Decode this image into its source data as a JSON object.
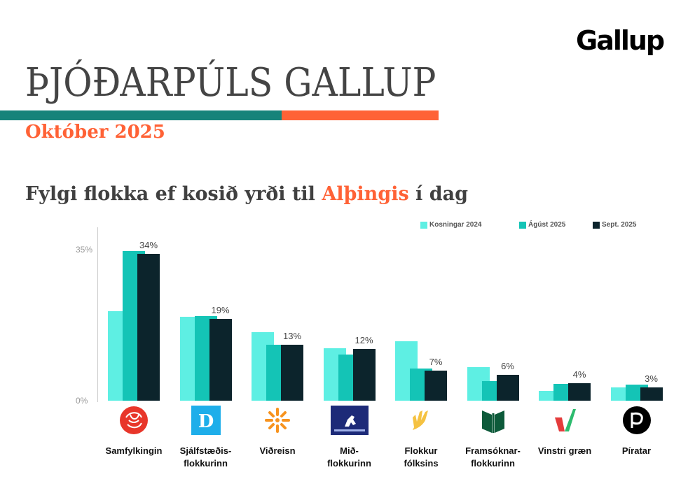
{
  "brand": {
    "logo_text": "Gallup"
  },
  "header": {
    "title": "ÞJÓÐARPÚLS GALLUP",
    "subtitle": "Október 2025",
    "colors": {
      "teal": "#17837a",
      "orange": "#ff6236"
    }
  },
  "section": {
    "heading_before": "Fylgi flokka ef kosið yrði til ",
    "heading_highlight": "Alþingis",
    "heading_after": " í dag"
  },
  "legend": [
    {
      "label": "Kosningar 2024",
      "color": "#5eefe3"
    },
    {
      "label": "Ágúst 2025",
      "color": "#14c4b6"
    },
    {
      "label": "Sept. 2025",
      "color": "#0c242c"
    }
  ],
  "axis": {
    "ticks": [
      "35%",
      "0%"
    ]
  },
  "parties": [
    {
      "name_line1": "Samfylkingin",
      "name_line2": "",
      "label": "34%",
      "logo": "red-rose-icon"
    },
    {
      "name_line1": "Sjálfstæðis-",
      "name_line2": "flokkurinn",
      "label": "19%",
      "logo": "d-letter-icon"
    },
    {
      "name_line1": "Viðreisn",
      "name_line2": "",
      "label": "13%",
      "logo": "orange-star-icon"
    },
    {
      "name_line1": "Mið-",
      "name_line2": "flokkurinn",
      "label": "12%",
      "logo": "horse-icon"
    },
    {
      "name_line1": "Flokkur",
      "name_line2": "fólksins",
      "label": "7%",
      "logo": "yellow-hand-icon"
    },
    {
      "name_line1": "Framsóknar-",
      "name_line2": "flokkurinn",
      "label": "6%",
      "logo": "green-book-icon"
    },
    {
      "name_line1": "Vinstri græn",
      "name_line2": "",
      "label": "4%",
      "logo": "v-check-icon"
    },
    {
      "name_line1": "Píratar",
      "name_line2": "",
      "label": "3%",
      "logo": "pirate-flag-icon"
    }
  ],
  "chart_data": {
    "type": "bar",
    "title": "Fylgi flokka ef kosið yrði til Alþingis í dag",
    "xlabel": "",
    "ylabel": "",
    "ylim": [
      0,
      35
    ],
    "yticks": [
      "0%",
      "35%"
    ],
    "grid": false,
    "legend_position": "top-right",
    "categories": [
      "Samfylkingin",
      "Sjálfstæðisflokkurinn",
      "Viðreisn",
      "Miðflokkurinn",
      "Flokkur fólksins",
      "Framsóknarflokkurinn",
      "Vinstri græn",
      "Píratar"
    ],
    "series": [
      {
        "name": "Kosningar 2024",
        "values": [
          20.8,
          19.4,
          15.8,
          12.1,
          13.8,
          7.8,
          2.3,
          3.0
        ]
      },
      {
        "name": "Ágúst 2025",
        "values": [
          34.7,
          19.6,
          13.0,
          10.7,
          7.5,
          4.5,
          3.9,
          3.7
        ]
      },
      {
        "name": "Sept. 2025",
        "values": [
          34,
          19,
          13,
          12,
          7,
          6,
          4,
          3
        ]
      }
    ],
    "data_labels": [
      "34%",
      "19%",
      "13%",
      "12%",
      "7%",
      "6%",
      "4%",
      "3%"
    ]
  }
}
